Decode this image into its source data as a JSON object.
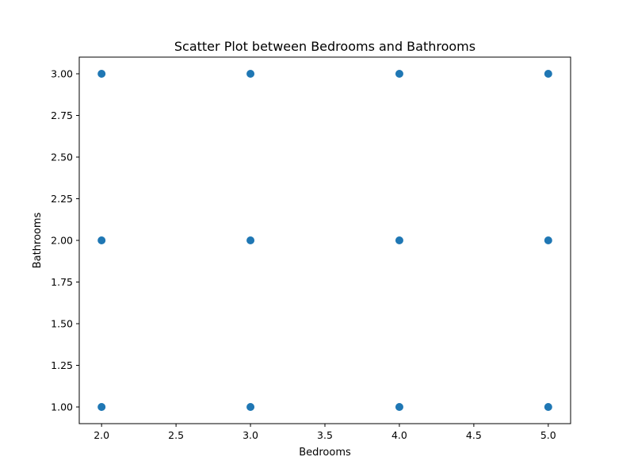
{
  "chart_data": {
    "type": "scatter",
    "title": "Scatter Plot between Bedrooms and Bathrooms",
    "xlabel": "Bedrooms",
    "ylabel": "Bathrooms",
    "xlim": [
      1.85,
      5.15
    ],
    "ylim": [
      0.9,
      3.1
    ],
    "xticks": [
      "2.0",
      "2.5",
      "3.0",
      "3.5",
      "4.0",
      "4.5",
      "5.0"
    ],
    "yticks": [
      "1.00",
      "1.25",
      "1.50",
      "1.75",
      "2.00",
      "2.25",
      "2.50",
      "2.75",
      "3.00"
    ],
    "grid": false,
    "marker_color": "#1f77b4",
    "points": [
      {
        "x": 2,
        "y": 1
      },
      {
        "x": 2,
        "y": 2
      },
      {
        "x": 2,
        "y": 3
      },
      {
        "x": 3,
        "y": 1
      },
      {
        "x": 3,
        "y": 2
      },
      {
        "x": 3,
        "y": 3
      },
      {
        "x": 4,
        "y": 1
      },
      {
        "x": 4,
        "y": 2
      },
      {
        "x": 4,
        "y": 3
      },
      {
        "x": 5,
        "y": 1
      },
      {
        "x": 5,
        "y": 2
      },
      {
        "x": 5,
        "y": 3
      }
    ]
  }
}
